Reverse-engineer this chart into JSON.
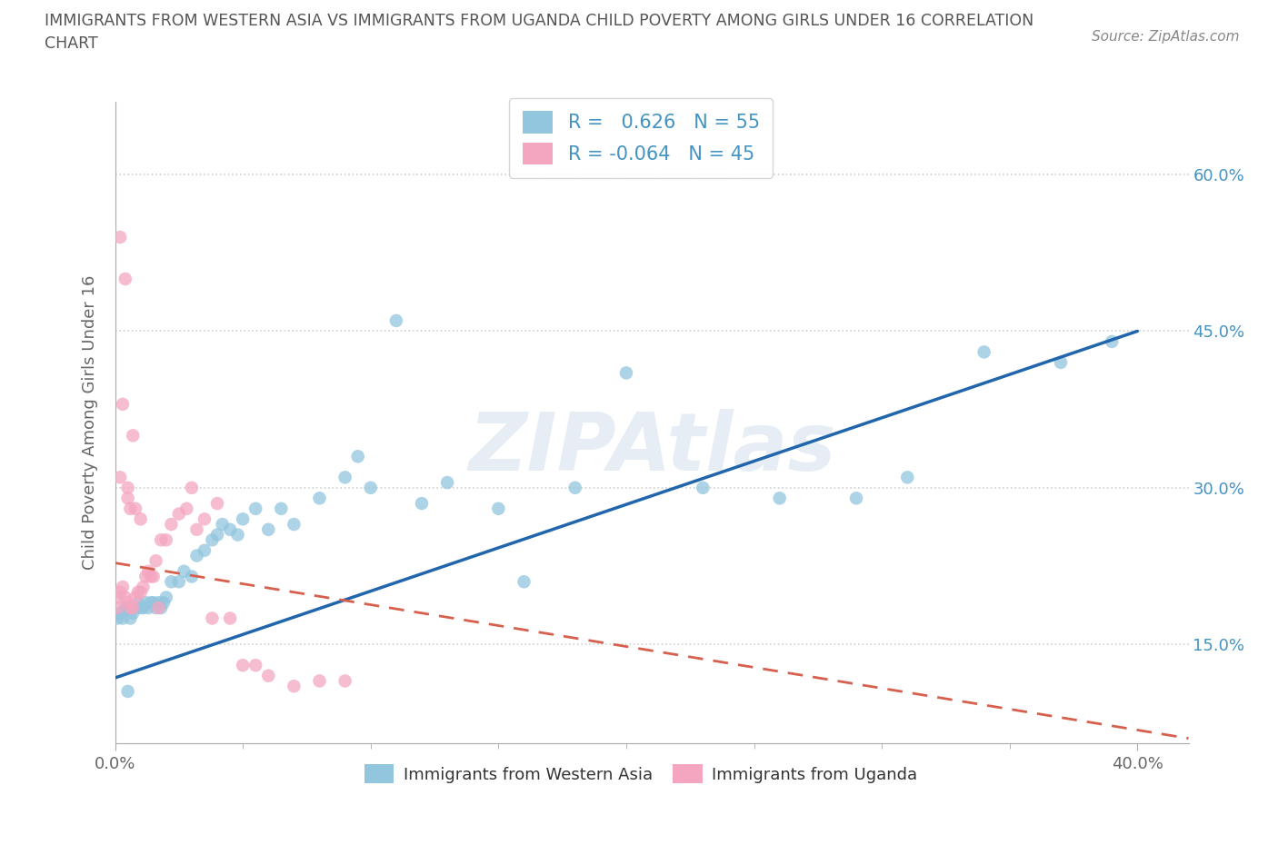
{
  "title_line1": "IMMIGRANTS FROM WESTERN ASIA VS IMMIGRANTS FROM UGANDA CHILD POVERTY AMONG GIRLS UNDER 16 CORRELATION",
  "title_line2": "CHART",
  "source_text": "Source: ZipAtlas.com",
  "ylabel": "Child Poverty Among Girls Under 16",
  "x_tick_labels_bottom": [
    "0.0%",
    "40.0%"
  ],
  "x_ticks_bottom": [
    0.0,
    0.4
  ],
  "y_tick_labels_right": [
    "15.0%",
    "30.0%",
    "45.0%",
    "60.0%"
  ],
  "y_ticks": [
    0.15,
    0.3,
    0.45,
    0.6
  ],
  "xlim": [
    0.0,
    0.42
  ],
  "ylim": [
    0.055,
    0.67
  ],
  "blue_scatter_x": [
    0.001,
    0.002,
    0.003,
    0.004,
    0.005,
    0.005,
    0.006,
    0.007,
    0.008,
    0.009,
    0.01,
    0.011,
    0.012,
    0.013,
    0.014,
    0.015,
    0.016,
    0.017,
    0.018,
    0.019,
    0.02,
    0.022,
    0.025,
    0.027,
    0.03,
    0.032,
    0.035,
    0.038,
    0.04,
    0.042,
    0.045,
    0.048,
    0.05,
    0.055,
    0.06,
    0.065,
    0.07,
    0.08,
    0.09,
    0.095,
    0.1,
    0.11,
    0.12,
    0.13,
    0.15,
    0.16,
    0.18,
    0.2,
    0.23,
    0.26,
    0.29,
    0.31,
    0.34,
    0.37,
    0.39
  ],
  "blue_scatter_y": [
    0.175,
    0.18,
    0.175,
    0.185,
    0.185,
    0.105,
    0.175,
    0.18,
    0.185,
    0.19,
    0.185,
    0.185,
    0.19,
    0.185,
    0.19,
    0.19,
    0.185,
    0.19,
    0.185,
    0.19,
    0.195,
    0.21,
    0.21,
    0.22,
    0.215,
    0.235,
    0.24,
    0.25,
    0.255,
    0.265,
    0.26,
    0.255,
    0.27,
    0.28,
    0.26,
    0.28,
    0.265,
    0.29,
    0.31,
    0.33,
    0.3,
    0.46,
    0.285,
    0.305,
    0.28,
    0.21,
    0.3,
    0.41,
    0.3,
    0.29,
    0.29,
    0.31,
    0.43,
    0.42,
    0.44
  ],
  "pink_scatter_x": [
    0.001,
    0.001,
    0.002,
    0.002,
    0.003,
    0.003,
    0.004,
    0.004,
    0.005,
    0.005,
    0.006,
    0.006,
    0.007,
    0.007,
    0.008,
    0.008,
    0.009,
    0.01,
    0.011,
    0.012,
    0.013,
    0.014,
    0.015,
    0.016,
    0.017,
    0.018,
    0.02,
    0.022,
    0.025,
    0.028,
    0.03,
    0.032,
    0.035,
    0.038,
    0.04,
    0.045,
    0.05,
    0.055,
    0.06,
    0.07,
    0.08,
    0.09,
    0.002,
    0.005,
    0.01
  ],
  "pink_scatter_y": [
    0.185,
    0.195,
    0.2,
    0.54,
    0.205,
    0.38,
    0.195,
    0.5,
    0.19,
    0.29,
    0.185,
    0.28,
    0.185,
    0.35,
    0.195,
    0.28,
    0.2,
    0.2,
    0.205,
    0.215,
    0.22,
    0.215,
    0.215,
    0.23,
    0.185,
    0.25,
    0.25,
    0.265,
    0.275,
    0.28,
    0.3,
    0.26,
    0.27,
    0.175,
    0.285,
    0.175,
    0.13,
    0.13,
    0.12,
    0.11,
    0.115,
    0.115,
    0.31,
    0.3,
    0.27
  ],
  "blue_line_x": [
    0.0,
    0.4
  ],
  "blue_line_y": [
    0.118,
    0.45
  ],
  "pink_line_x": [
    0.0,
    0.42
  ],
  "pink_line_y": [
    0.228,
    0.06
  ],
  "blue_scatter_color": "#92c5de",
  "pink_scatter_color": "#f4a6c0",
  "blue_line_color": "#2166ac",
  "pink_line_color": "#d6604d",
  "watermark": "ZIPAtlas",
  "grid_color": "#d0d0d0",
  "background_color": "#ffffff",
  "title_color": "#555555",
  "label_color": "#666666",
  "right_tick_color": "#4393c3",
  "bottom_legend_labels": [
    "Immigrants from Western Asia",
    "Immigrants from Uganda"
  ],
  "legend_r1_prefix": "R = ",
  "legend_r1_value": " 0.626",
  "legend_r1_n": " N = 55",
  "legend_r2_prefix": "R = ",
  "legend_r2_value": "-0.064",
  "legend_r2_n": " N = 45"
}
